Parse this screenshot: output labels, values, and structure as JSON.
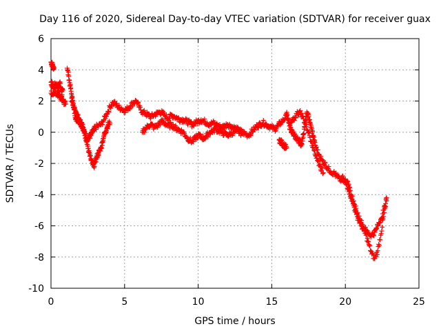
{
  "chart_data": {
    "type": "scatter",
    "title": "Day 116 of 2020, Sidereal Day-to-day VTEC variation (SDTVAR) for receiver guax",
    "xlabel": "GPS time / hours",
    "ylabel": "SDTVAR / TECUs",
    "xlim": [
      0,
      25
    ],
    "ylim": [
      -10,
      6
    ],
    "xticks": [
      0,
      5,
      10,
      15,
      20,
      25
    ],
    "yticks": [
      -10,
      -8,
      -6,
      -4,
      -2,
      0,
      2,
      4,
      6
    ],
    "grid": true,
    "marker": "plus",
    "color": "#ff0000",
    "series": [
      {
        "name": "SDTVAR",
        "note": "dense track of '+' markers; values estimated along main traces",
        "traces": [
          {
            "x": [
              0.0,
              0.05,
              0.1,
              0.15,
              0.2
            ],
            "y": [
              4.5,
              4.4,
              4.3,
              4.2,
              4.1
            ]
          },
          {
            "x": [
              0.0,
              0.1,
              0.2,
              0.3,
              0.4,
              0.5,
              0.6,
              0.7,
              0.8
            ],
            "y": [
              3.2,
              3.0,
              2.8,
              3.1,
              3.0,
              2.9,
              3.2,
              2.8,
              2.7
            ]
          },
          {
            "x": [
              0.0,
              0.15,
              0.3,
              0.45,
              0.6,
              0.75
            ],
            "y": [
              2.5,
              2.4,
              2.6,
              2.3,
              2.2,
              2.4
            ]
          },
          {
            "x": [
              1.1,
              1.2,
              1.3,
              1.4,
              1.5,
              1.6,
              1.7,
              1.8,
              1.9,
              2.0,
              2.1,
              2.2,
              2.3,
              2.4,
              2.5,
              2.6,
              2.7,
              2.8,
              2.9,
              3.0,
              3.2,
              3.4,
              3.6,
              3.8,
              4.0,
              4.2,
              4.4,
              4.6,
              4.8,
              5.0,
              5.2,
              5.4,
              5.6,
              5.8,
              6.0,
              6.2,
              6.4,
              6.6,
              6.8,
              7.0,
              7.2,
              7.4,
              7.6,
              7.8,
              8.0,
              8.2,
              8.4,
              8.6,
              8.8,
              9.0,
              9.2,
              9.4,
              9.6,
              9.8,
              10.0,
              10.2,
              10.4,
              10.6,
              10.8,
              11.0,
              11.2,
              11.4,
              11.6,
              11.8,
              12.0,
              12.2,
              12.4,
              12.6,
              12.8,
              13.0,
              13.2,
              13.4,
              13.6,
              13.8,
              14.0,
              14.2,
              14.4,
              14.6,
              14.8,
              15.0,
              15.2,
              15.4,
              15.6,
              15.8,
              16.0
            ],
            "y": [
              4.1,
              3.6,
              3.0,
              2.4,
              1.8,
              1.2,
              0.9,
              0.8,
              0.7,
              0.6,
              0.4,
              0.2,
              -0.2,
              -0.5,
              -0.4,
              -0.3,
              -0.2,
              0.0,
              0.1,
              0.3,
              0.4,
              0.5,
              0.8,
              1.2,
              1.6,
              1.9,
              1.8,
              1.6,
              1.5,
              1.4,
              1.5,
              1.7,
              1.9,
              2.0,
              1.6,
              1.3,
              1.2,
              1.1,
              1.0,
              1.1,
              1.2,
              1.3,
              1.2,
              1.0,
              0.9,
              1.1,
              1.0,
              0.9,
              0.8,
              0.8,
              0.7,
              0.6,
              0.5,
              0.6,
              0.7,
              0.8,
              0.7,
              0.6,
              0.5,
              0.6,
              0.5,
              0.4,
              0.3,
              0.4,
              0.5,
              0.4,
              0.3,
              0.2,
              0.1,
              0.0,
              -0.1,
              -0.2,
              0.0,
              0.2,
              0.4,
              0.5,
              0.6,
              0.5,
              0.4,
              0.3,
              0.2,
              0.4,
              0.6,
              0.8,
              1.0
            ]
          },
          {
            "x": [
              1.4,
              1.5,
              1.6,
              1.7,
              1.8,
              1.9,
              2.0,
              2.1,
              2.2,
              2.3,
              2.4,
              2.5,
              2.6,
              2.7,
              2.8,
              2.9,
              3.0,
              3.1,
              3.2,
              3.3,
              3.4,
              3.5,
              3.6,
              3.7,
              3.8,
              3.9,
              4.0
            ],
            "y": [
              2.2,
              1.8,
              1.5,
              1.2,
              1.0,
              0.9,
              0.8,
              0.6,
              0.3,
              0.0,
              -0.4,
              -0.9,
              -1.3,
              -1.7,
              -2.0,
              -2.2,
              -1.9,
              -1.6,
              -1.4,
              -1.2,
              -1.0,
              -0.6,
              -0.2,
              0.0,
              0.3,
              0.5,
              0.6
            ]
          },
          {
            "x": [
              0.5,
              0.6,
              0.7,
              0.8,
              0.9,
              1.0
            ],
            "y": [
              2.6,
              2.4,
              2.2,
              2.0,
              1.9,
              1.8
            ]
          },
          {
            "x": [
              6.2,
              6.4,
              6.6,
              6.8,
              7.0,
              7.2,
              7.4,
              7.6,
              7.8,
              8.0,
              8.2,
              8.4,
              8.6,
              8.8,
              9.0,
              9.2,
              9.4,
              9.6,
              9.8,
              10.0,
              10.2,
              10.4,
              10.6,
              10.8,
              11.0,
              11.2,
              11.4,
              11.6,
              11.8,
              12.0,
              12.2,
              12.4,
              12.6,
              12.8,
              13.0
            ],
            "y": [
              0.0,
              0.2,
              0.4,
              0.5,
              0.3,
              0.4,
              0.6,
              0.7,
              0.5,
              0.4,
              0.5,
              0.3,
              0.2,
              0.1,
              0.0,
              -0.3,
              -0.5,
              -0.6,
              -0.4,
              -0.2,
              -0.3,
              -0.4,
              -0.2,
              0.0,
              0.1,
              0.2,
              0.1,
              0.0,
              -0.1,
              -0.2,
              -0.1,
              0.0,
              0.1,
              0.0,
              -0.1
            ]
          },
          {
            "x": [
              15.5,
              15.6,
              15.7,
              15.8,
              15.9,
              16.0
            ],
            "y": [
              -0.5,
              -0.6,
              -0.7,
              -0.8,
              -0.9,
              -1.0
            ]
          },
          {
            "x": [
              16.0,
              16.1,
              16.2,
              16.3,
              16.4,
              16.5,
              16.6,
              16.7,
              16.8,
              16.9,
              17.0,
              17.1,
              17.2,
              17.3,
              17.4,
              17.5,
              17.6,
              17.7,
              17.8,
              17.9,
              18.0,
              18.2,
              18.4,
              18.6,
              18.8,
              19.0,
              19.2,
              19.4,
              19.6,
              19.8,
              20.0,
              20.2,
              20.4,
              20.6,
              20.8,
              21.0,
              21.2,
              21.4,
              21.6,
              21.8,
              22.0,
              22.2,
              22.4,
              22.6,
              22.8
            ],
            "y": [
              1.2,
              0.8,
              0.4,
              0.2,
              0.0,
              -0.2,
              -0.3,
              -0.4,
              -0.5,
              -0.6,
              -0.8,
              -0.4,
              0.2,
              0.8,
              1.2,
              1.0,
              0.6,
              0.2,
              -0.2,
              -0.6,
              -1.0,
              -1.4,
              -1.8,
              -2.0,
              -2.3,
              -2.5,
              -2.6,
              -2.8,
              -3.0,
              -3.1,
              -3.2,
              -3.6,
              -4.2,
              -4.8,
              -5.4,
              -5.8,
              -6.2,
              -6.6,
              -7.2,
              -7.8,
              -8.1,
              -7.6,
              -6.6,
              -5.4,
              -4.2
            ]
          },
          {
            "x": [
              16.3,
              16.5,
              16.7,
              16.9,
              17.1,
              17.3,
              17.5,
              17.7,
              17.9,
              18.1,
              18.3,
              18.5
            ],
            "y": [
              0.6,
              0.8,
              1.2,
              1.3,
              1.0,
              0.5,
              0.0,
              -0.6,
              -1.2,
              -1.8,
              -2.2,
              -2.6
            ]
          },
          {
            "x": [
              19.8,
              20.0,
              20.2,
              20.4,
              20.6,
              20.8,
              21.0,
              21.2,
              21.4,
              21.6,
              21.8,
              22.0,
              22.2,
              22.4,
              22.6,
              22.8
            ],
            "y": [
              -2.8,
              -3.0,
              -3.4,
              -4.0,
              -4.6,
              -5.2,
              -5.6,
              -6.0,
              -6.3,
              -6.5,
              -6.6,
              -6.4,
              -6.0,
              -5.6,
              -5.0,
              -4.4
            ]
          }
        ]
      }
    ]
  }
}
